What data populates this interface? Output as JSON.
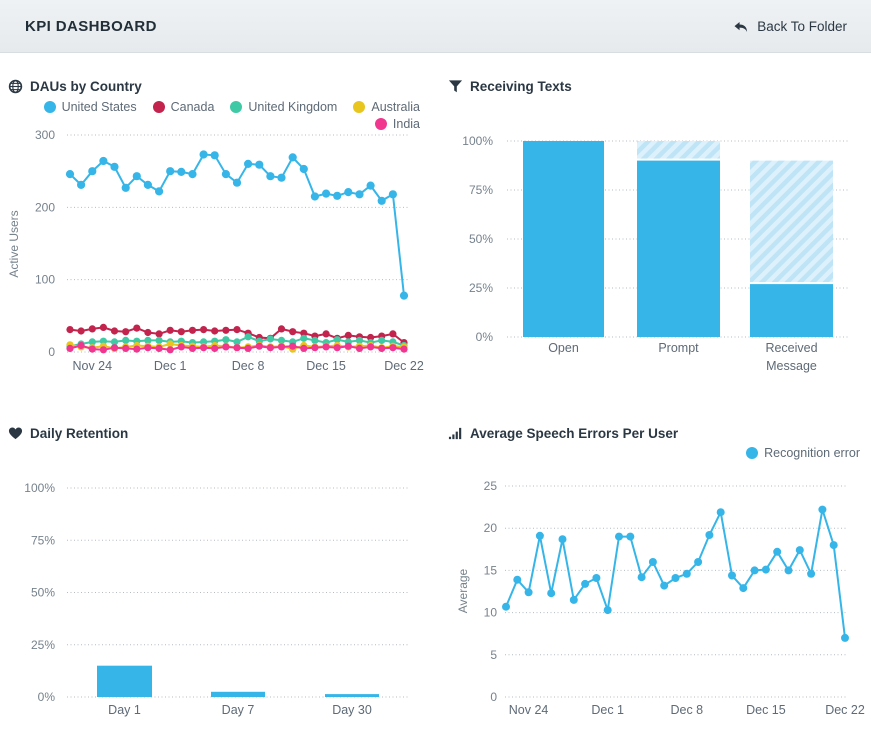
{
  "header": {
    "title": "KPI DASHBOARD",
    "back_label": "Back To Folder",
    "back_icon": "reply-arrow-icon"
  },
  "colors": {
    "accent_blue": "#36B5E8",
    "hatch_light": "#DCF1FB",
    "hatch_stripe": "#BEE4F6",
    "title_text": "#2B3844",
    "axis_text": "#76828C",
    "header_bg": "#EAEEF1"
  },
  "icons": {
    "daus": "globe-icon",
    "receiving_texts": "filter-funnel-icon",
    "daily_retention": "heart-icon",
    "speech_errors": "ascending-bars-icon"
  },
  "chart_data": [
    {
      "type": "line",
      "title": "DAUs by Country",
      "ylabel": "Active Users",
      "ylim": [
        0,
        300
      ],
      "yticks": [
        0,
        100,
        200,
        300
      ],
      "ytick_labels": [
        "0",
        "100",
        "200",
        "300"
      ],
      "xticks": [
        "Nov 24",
        "Dec 1",
        "Dec 8",
        "Dec 15",
        "Dec 22"
      ],
      "xtick_indices": [
        2,
        9,
        16,
        23,
        30
      ],
      "grid": "dotted-horizontal",
      "legend_position": "top-right",
      "series": [
        {
          "name": "United States",
          "color": "#36B5E8",
          "values": [
            246,
            231,
            250,
            264,
            256,
            227,
            243,
            231,
            222,
            250,
            249,
            246,
            273,
            272,
            246,
            234,
            260,
            259,
            243,
            241,
            269,
            253,
            215,
            219,
            216,
            221,
            218,
            230,
            209,
            218,
            78
          ]
        },
        {
          "name": "Canada",
          "color": "#C2244E",
          "values": [
            31,
            29,
            32,
            34,
            29,
            28,
            33,
            27,
            25,
            30,
            28,
            30,
            31,
            29,
            30,
            31,
            26,
            20,
            19,
            32,
            28,
            26,
            22,
            25,
            19,
            23,
            21,
            20,
            22,
            25,
            13
          ]
        },
        {
          "name": "United Kingdom",
          "color": "#3FC9A5",
          "values": [
            8,
            11,
            14,
            15,
            14,
            16,
            15,
            16,
            16,
            14,
            15,
            13,
            14,
            15,
            17,
            14,
            21,
            15,
            18,
            16,
            14,
            19,
            16,
            13,
            17,
            14,
            16,
            13,
            16,
            14,
            9
          ]
        },
        {
          "name": "Australia",
          "color": "#E8C51F",
          "values": [
            10,
            7,
            6,
            8,
            5,
            7,
            9,
            8,
            7,
            11,
            9,
            8,
            7,
            9,
            8,
            6,
            7,
            9,
            7,
            8,
            4,
            9,
            7,
            8,
            9,
            7,
            8,
            9,
            6,
            8,
            7
          ]
        },
        {
          "name": "India",
          "color": "#F0368E",
          "values": [
            5,
            9,
            4,
            3,
            6,
            5,
            4,
            6,
            5,
            3,
            7,
            5,
            6,
            5,
            7,
            6,
            5,
            8,
            6,
            7,
            8,
            5,
            6,
            7,
            6,
            8,
            5,
            7,
            5,
            6,
            4
          ]
        }
      ]
    },
    {
      "type": "bar",
      "title": "Receiving Texts",
      "categories": [
        "Open",
        "Prompt",
        "Received\nMessage"
      ],
      "solid_values": [
        100,
        90,
        27
      ],
      "total_values": [
        100,
        100,
        90
      ],
      "hatch_note": "area between solid_value and total_value is diagonally hatched",
      "ylim": [
        0,
        100
      ],
      "yticks": [
        0,
        25,
        50,
        75,
        100
      ],
      "ytick_labels": [
        "0%",
        "25%",
        "50%",
        "75%",
        "100%"
      ],
      "bar_color": "#36B5E8",
      "grid": "dotted-horizontal"
    },
    {
      "type": "bar",
      "title": "Daily Retention",
      "categories": [
        "Day 1",
        "Day 7",
        "Day 30"
      ],
      "values": [
        15,
        2.5,
        1.4
      ],
      "ylim": [
        0,
        100
      ],
      "yticks": [
        0,
        25,
        50,
        75,
        100
      ],
      "ytick_labels": [
        "0%",
        "25%",
        "50%",
        "75%",
        "100%"
      ],
      "bar_color": "#36B5E8",
      "grid": "dotted-horizontal"
    },
    {
      "type": "line",
      "title": "Average Speech Errors Per User",
      "ylabel": "Average",
      "ylim": [
        0,
        25
      ],
      "yticks": [
        0,
        5,
        10,
        15,
        20,
        25
      ],
      "ytick_labels": [
        "0",
        "5",
        "10",
        "15",
        "20",
        "25"
      ],
      "xticks": [
        "Nov 24",
        "Dec 1",
        "Dec 8",
        "Dec 15",
        "Dec 22"
      ],
      "xtick_indices": [
        2,
        9,
        16,
        23,
        30
      ],
      "grid": "dotted-horizontal",
      "legend_position": "top-right",
      "series": [
        {
          "name": "Recognition error",
          "color": "#36B5E8",
          "values": [
            10.7,
            13.9,
            12.4,
            19.1,
            12.3,
            18.7,
            11.5,
            13.4,
            14.1,
            10.3,
            19,
            19,
            14.2,
            16,
            13.2,
            14.1,
            14.6,
            16,
            19.2,
            21.9,
            14.4,
            12.9,
            15,
            15.1,
            17.2,
            15,
            17.4,
            14.6,
            22.2,
            18,
            7
          ]
        }
      ]
    }
  ]
}
